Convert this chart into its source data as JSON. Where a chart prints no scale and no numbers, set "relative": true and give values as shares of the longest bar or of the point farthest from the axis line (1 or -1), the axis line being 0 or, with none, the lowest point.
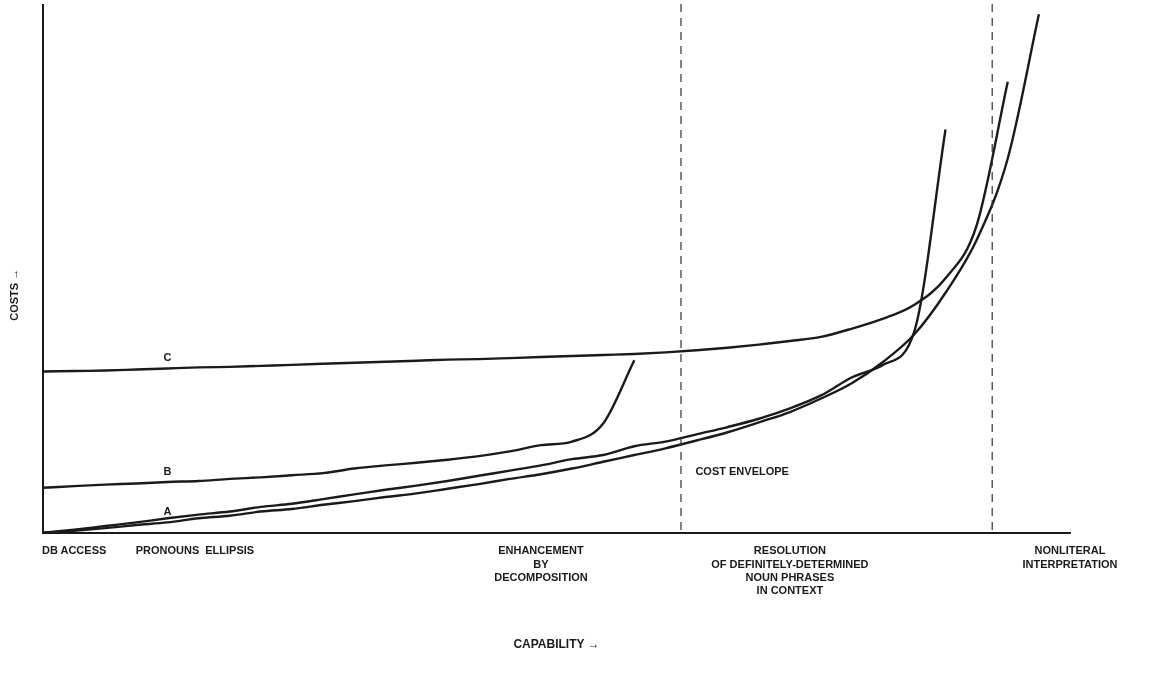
{
  "chart_data": {
    "type": "line",
    "relative": true,
    "xlabel": "CAPABILITY →",
    "ylabel": "COSTS →",
    "categories": [
      null,
      "DB ACCESS",
      null,
      null,
      "PRONOUNS",
      null,
      "ELLIPSIS",
      null,
      null,
      null,
      null,
      null,
      null,
      null,
      null,
      null,
      "ENHANCEMENT\nBY\nDECOMPOSITION",
      null,
      null,
      null,
      null,
      null,
      null,
      null,
      "RESOLUTION\nOF DEFINITELY-DETERMINED\nNOUN PHRASES\nIN CONTEXT",
      null,
      null,
      null,
      null,
      null,
      null,
      null,
      null,
      "NONLITERAL\nINTERPRETATION"
    ],
    "series": [
      {
        "name": "A",
        "color": "#1a1a1a",
        "values": [
          0,
          0.004,
          0.009,
          0.015,
          0.02,
          0.028,
          0.033,
          0.041,
          0.046,
          0.054,
          0.061,
          0.069,
          0.076,
          0.085,
          0.094,
          0.104,
          0.113,
          0.124,
          0.137,
          0.15,
          0.163,
          0.178,
          0.194,
          0.213,
          0.233,
          0.259,
          0.289,
          0.33,
          0.383,
          0.463,
          0.565,
          0.722,
          1,
          null
        ]
      },
      {
        "color": "#1a1a1a",
        "values": [
          0,
          0.006,
          0.013,
          0.02,
          0.028,
          0.035,
          0.041,
          0.05,
          0.056,
          0.065,
          0.074,
          0.083,
          0.091,
          0.1,
          0.11,
          0.12,
          0.13,
          0.142,
          0.15,
          0.167,
          0.176,
          0.19,
          0.204,
          0.22,
          0.24,
          0.265,
          0.3,
          0.324,
          0.389,
          0.778,
          null,
          null,
          null,
          null
        ]
      },
      {
        "name": "B",
        "color": "#1a1a1a",
        "values": [
          0.087,
          0.09,
          0.093,
          0.095,
          0.098,
          0.1,
          0.104,
          0.107,
          0.111,
          0.115,
          0.124,
          0.13,
          0.135,
          0.141,
          0.148,
          0.157,
          0.169,
          0.176,
          0.211,
          0.333,
          null,
          null,
          null,
          null,
          null,
          null,
          null,
          null,
          null,
          null,
          null,
          null,
          null,
          null
        ]
      },
      {
        "name": "C",
        "color": "#1a1a1a",
        "values": [
          0.311,
          0.312,
          0.313,
          0.315,
          0.317,
          0.319,
          0.32,
          0.322,
          0.324,
          0.326,
          0.328,
          0.33,
          0.332,
          0.334,
          0.335,
          0.337,
          0.339,
          0.341,
          0.343,
          0.345,
          0.348,
          0.352,
          0.357,
          0.363,
          0.37,
          0.378,
          0.394,
          0.413,
          0.44,
          0.491,
          0.593,
          0.87,
          null,
          null
        ]
      }
    ],
    "annotations": [
      "COST ENVELOPE"
    ],
    "grid": false,
    "legend": false,
    "marker": "none"
  }
}
